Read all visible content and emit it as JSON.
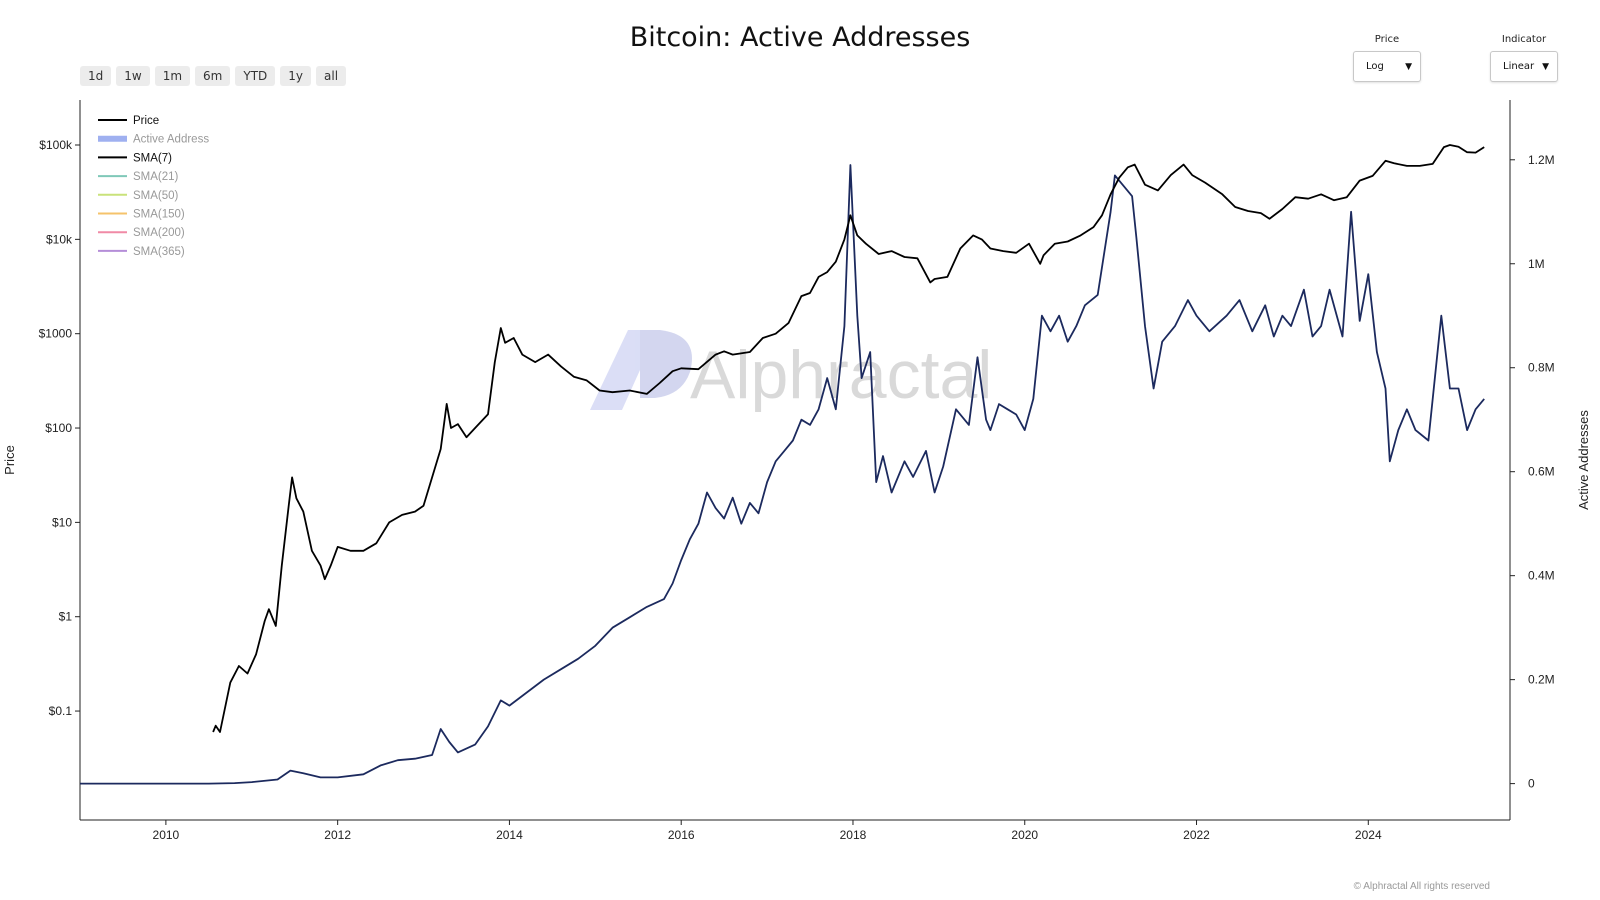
{
  "header": {
    "title": "Bitcoin: Active Addresses"
  },
  "range_buttons": [
    "1d",
    "1w",
    "1m",
    "6m",
    "YTD",
    "1y",
    "all"
  ],
  "controls": {
    "price": {
      "label": "Price",
      "value": "Log"
    },
    "indicator": {
      "label": "Indicator",
      "value": "Linear"
    }
  },
  "watermark": "Alphractal",
  "footer": {
    "copyright": "© Alphractal All rights reserved"
  },
  "chart_data": {
    "type": "line",
    "grid": false,
    "legend_placement": "top-left",
    "legend": [
      {
        "name": "Price",
        "color": "#000000",
        "active": true
      },
      {
        "name": "Active Address",
        "color": "#9fb0f0",
        "active": false
      },
      {
        "name": "SMA(7)",
        "color": "#000000",
        "active": true
      },
      {
        "name": "SMA(21)",
        "color": "#7fc8b8",
        "active": false
      },
      {
        "name": "SMA(50)",
        "color": "#c9e27a",
        "active": false
      },
      {
        "name": "SMA(150)",
        "color": "#f5c36b",
        "active": false
      },
      {
        "name": "SMA(200)",
        "color": "#f08aa6",
        "active": false
      },
      {
        "name": "SMA(365)",
        "color": "#b58ed8",
        "active": false
      }
    ],
    "x_axis": {
      "ticks": [
        "2010",
        "2012",
        "2014",
        "2016",
        "2018",
        "2020",
        "2022",
        "2024"
      ],
      "range": [
        2009.0,
        2025.65
      ]
    },
    "y_left": {
      "label": "Price",
      "scale": "log",
      "range": [
        0.007,
        300000
      ],
      "ticks": [
        "$0.1",
        "$1",
        "$10",
        "$100",
        "$1000",
        "$10k",
        "$100k"
      ]
    },
    "y_right": {
      "label": "Active Addresses",
      "scale": "linear",
      "range": [
        -70000,
        1315000
      ],
      "ticks": [
        "0",
        "0.2M",
        "0.4M",
        "0.6M",
        "0.8M",
        "1M",
        "1.2M"
      ]
    },
    "series": [
      {
        "name": "Price",
        "color": "#000000",
        "axis": "left",
        "x": [
          2010.55,
          2010.58,
          2010.63,
          2010.75,
          2010.85,
          2010.95,
          2011.05,
          2011.15,
          2011.2,
          2011.28,
          2011.35,
          2011.43,
          2011.47,
          2011.52,
          2011.6,
          2011.7,
          2011.8,
          2011.85,
          2011.92,
          2012.0,
          2012.15,
          2012.3,
          2012.45,
          2012.6,
          2012.75,
          2012.9,
          2013.0,
          2013.1,
          2013.2,
          2013.27,
          2013.32,
          2013.4,
          2013.5,
          2013.6,
          2013.75,
          2013.83,
          2013.9,
          2013.95,
          2014.05,
          2014.15,
          2014.3,
          2014.45,
          2014.6,
          2014.75,
          2014.9,
          2015.05,
          2015.2,
          2015.4,
          2015.6,
          2015.75,
          2015.9,
          2016.0,
          2016.2,
          2016.4,
          2016.5,
          2016.6,
          2016.8,
          2016.95,
          2017.1,
          2017.25,
          2017.4,
          2017.5,
          2017.6,
          2017.7,
          2017.8,
          2017.9,
          2017.97,
          2018.05,
          2018.15,
          2018.3,
          2018.45,
          2018.6,
          2018.75,
          2018.9,
          2018.95,
          2019.1,
          2019.25,
          2019.4,
          2019.5,
          2019.6,
          2019.75,
          2019.9,
          2020.05,
          2020.18,
          2020.22,
          2020.35,
          2020.5,
          2020.65,
          2020.8,
          2020.9,
          2021.0,
          2021.1,
          2021.2,
          2021.28,
          2021.4,
          2021.55,
          2021.7,
          2021.85,
          2021.95,
          2022.1,
          2022.3,
          2022.45,
          2022.6,
          2022.75,
          2022.85,
          2023.0,
          2023.15,
          2023.3,
          2023.45,
          2023.6,
          2023.75,
          2023.9,
          2024.05,
          2024.2,
          2024.3,
          2024.45,
          2024.6,
          2024.75,
          2024.88,
          2024.95,
          2025.05,
          2025.15,
          2025.25,
          2025.35
        ],
        "y": [
          0.06,
          0.07,
          0.06,
          0.2,
          0.3,
          0.25,
          0.4,
          0.9,
          1.2,
          0.8,
          3.5,
          15,
          30,
          18,
          13,
          5,
          3.5,
          2.5,
          3.5,
          5.5,
          5,
          5,
          6,
          10,
          12,
          13,
          15,
          30,
          60,
          180,
          100,
          110,
          80,
          100,
          140,
          500,
          1150,
          800,
          900,
          600,
          500,
          600,
          450,
          350,
          320,
          250,
          240,
          250,
          230,
          300,
          400,
          430,
          420,
          600,
          650,
          600,
          640,
          900,
          1000,
          1300,
          2500,
          2700,
          4000,
          4500,
          5800,
          10000,
          18000,
          11000,
          9000,
          7000,
          7500,
          6500,
          6300,
          3500,
          3800,
          4000,
          8000,
          11000,
          10000,
          8000,
          7500,
          7200,
          9000,
          5500,
          6800,
          9000,
          9500,
          11000,
          13500,
          18000,
          30000,
          45000,
          58000,
          62000,
          38000,
          33000,
          48000,
          62000,
          48000,
          40000,
          30000,
          22000,
          20000,
          19000,
          16500,
          21000,
          28000,
          27000,
          30000,
          26000,
          28000,
          42000,
          47000,
          68000,
          64000,
          60000,
          60000,
          63000,
          95000,
          100000,
          96000,
          84000,
          83000,
          95000
        ]
      },
      {
        "name": "Active Address",
        "color": "#1c2a5e",
        "axis": "right",
        "x": [
          2009.0,
          2010.0,
          2010.5,
          2010.8,
          2011.0,
          2011.3,
          2011.45,
          2011.6,
          2011.8,
          2012.0,
          2012.3,
          2012.5,
          2012.7,
          2012.9,
          2013.1,
          2013.2,
          2013.3,
          2013.4,
          2013.6,
          2013.75,
          2013.9,
          2014.0,
          2014.2,
          2014.4,
          2014.6,
          2014.8,
          2015.0,
          2015.2,
          2015.4,
          2015.6,
          2015.8,
          2015.9,
          2016.0,
          2016.1,
          2016.2,
          2016.3,
          2016.4,
          2016.5,
          2016.6,
          2016.7,
          2016.8,
          2016.9,
          2017.0,
          2017.1,
          2017.2,
          2017.3,
          2017.4,
          2017.5,
          2017.6,
          2017.7,
          2017.8,
          2017.9,
          2017.97,
          2018.05,
          2018.1,
          2018.2,
          2018.27,
          2018.35,
          2018.45,
          2018.6,
          2018.7,
          2018.85,
          2018.95,
          2019.05,
          2019.2,
          2019.35,
          2019.45,
          2019.55,
          2019.6,
          2019.7,
          2019.8,
          2019.9,
          2020.0,
          2020.1,
          2020.2,
          2020.3,
          2020.4,
          2020.5,
          2020.6,
          2020.7,
          2020.85,
          2021.0,
          2021.05,
          2021.15,
          2021.25,
          2021.3,
          2021.4,
          2021.5,
          2021.6,
          2021.75,
          2021.9,
          2022.0,
          2022.15,
          2022.35,
          2022.5,
          2022.65,
          2022.8,
          2022.9,
          2023.0,
          2023.1,
          2023.25,
          2023.35,
          2023.45,
          2023.55,
          2023.7,
          2023.8,
          2023.9,
          2024.0,
          2024.1,
          2024.2,
          2024.25,
          2024.35,
          2024.45,
          2024.55,
          2024.7,
          2024.85,
          2024.95,
          2025.05,
          2025.15,
          2025.25,
          2025.35
        ],
        "y": [
          0,
          0,
          0,
          1000,
          3000,
          8000,
          25000,
          20000,
          12000,
          12000,
          18000,
          35000,
          45000,
          48000,
          55000,
          105000,
          80000,
          60000,
          75000,
          110000,
          160000,
          150000,
          175000,
          200000,
          220000,
          240000,
          265000,
          300000,
          320000,
          340000,
          355000,
          385000,
          430000,
          470000,
          500000,
          560000,
          530000,
          510000,
          550000,
          500000,
          540000,
          520000,
          580000,
          620000,
          640000,
          660000,
          700000,
          690000,
          720000,
          780000,
          720000,
          880000,
          1190000,
          900000,
          780000,
          830000,
          580000,
          630000,
          560000,
          620000,
          590000,
          640000,
          560000,
          610000,
          720000,
          690000,
          820000,
          700000,
          680000,
          730000,
          720000,
          710000,
          680000,
          740000,
          900000,
          870000,
          900000,
          850000,
          880000,
          920000,
          940000,
          1100000,
          1170000,
          1150000,
          1130000,
          1050000,
          880000,
          760000,
          850000,
          880000,
          930000,
          900000,
          870000,
          900000,
          930000,
          870000,
          920000,
          860000,
          900000,
          880000,
          950000,
          860000,
          880000,
          950000,
          860000,
          1100000,
          890000,
          980000,
          830000,
          760000,
          620000,
          680000,
          720000,
          680000,
          660000,
          900000,
          760000,
          760000,
          680000,
          720000,
          740000
        ]
      }
    ]
  }
}
